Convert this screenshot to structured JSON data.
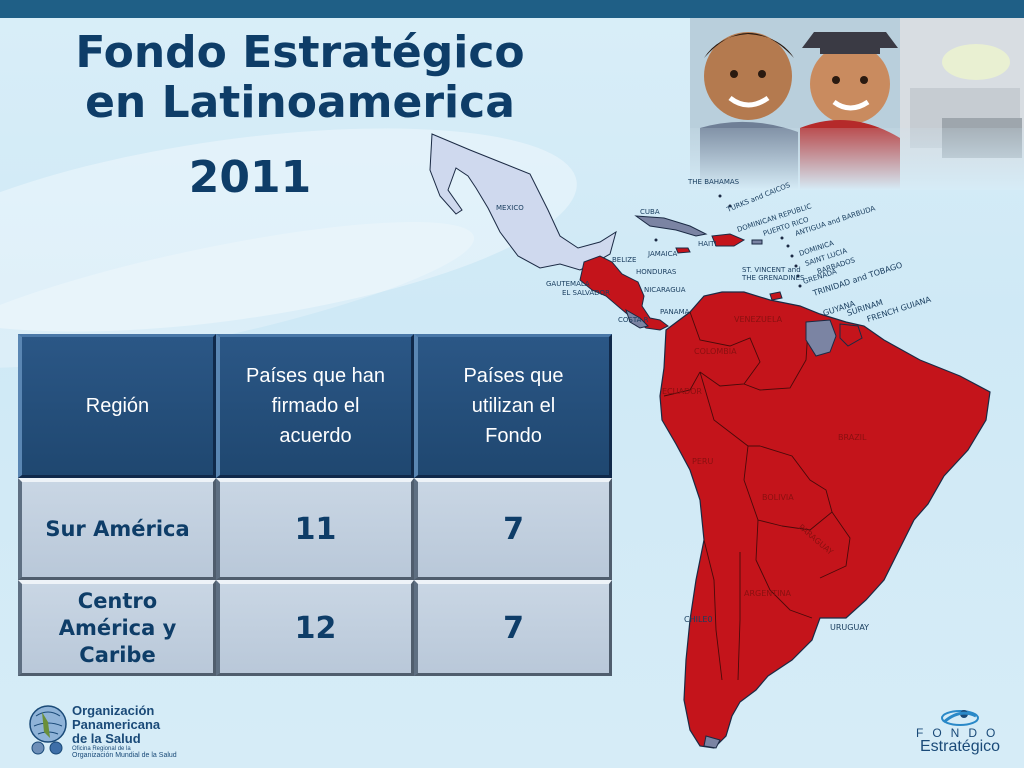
{
  "title": {
    "line1": "Fondo Estratégico",
    "line2": "en Latinoamerica",
    "year": "2011"
  },
  "table": {
    "headers": [
      "Región",
      "Países que han firmado el acuerdo",
      "Países que utilizan el Fondo"
    ],
    "rows": [
      {
        "region": "Sur América",
        "signed": "11",
        "using": "7"
      },
      {
        "region": "Centro América y Caribe",
        "signed": "12",
        "using": "7"
      }
    ]
  },
  "map_labels": {
    "mexico": "MEXICO",
    "bahamas": "THE BAHAMAS",
    "cuba": "CUBA",
    "turks": "TURKS and CAICOS",
    "dominican": "DOMINICAN REPUBLIC",
    "puerto_rico": "PUERTO RICO",
    "antigua": "ANTIGUA and BARBUDA",
    "haiti": "HAITI",
    "jamaica": "JAMAICA",
    "dominica": "DOMINICA",
    "belize": "BELIZE",
    "saint_lucia": "SAINT LUCIA",
    "barbados": "BARBADOS",
    "honduras": "HONDURAS",
    "st_vincent_1": "ST. VINCENT and",
    "st_vincent_2": "THE GRENADINES",
    "grenada": "GRENADA",
    "guatemala": "GAUTEMALA",
    "trinidad": "TRINIDAD and TOBAGO",
    "el_salvador": "EL SALVADOR",
    "nicaragua": "NICARAGUA",
    "guyana": "GUYANA",
    "surinam": "SURINAM",
    "french_guiana": "FRENCH GUIANA",
    "panama": "PANAMA",
    "costa_rica": "COSTA R",
    "venezuela": "VENEZUELA",
    "colombia": "COLOMBIA",
    "ecuador": "ECUADOR",
    "brazil": "BRAZIL",
    "peru": "PERU",
    "bolivia": "BOLIVIA",
    "paraguay": "PARAGUAY",
    "argentina": "ARGENTINA",
    "chile": "CHILE0",
    "uruguay": "URUGUAY"
  },
  "footer": {
    "paho_name_1": "Organización",
    "paho_name_2": "Panamericana",
    "paho_name_3": "de la Salud",
    "paho_sub_1": "Oficina Regional de la",
    "paho_sub_2": "Organización Mundial de la Salud",
    "fondo_1": "FONDO",
    "fondo_2": "Estratégico"
  },
  "colors": {
    "participating": "#c4141b",
    "non_participating": "#7b84a3",
    "mexico": "#cfd9ee",
    "header_bg": "#1f4770",
    "title": "#0e3d68"
  }
}
